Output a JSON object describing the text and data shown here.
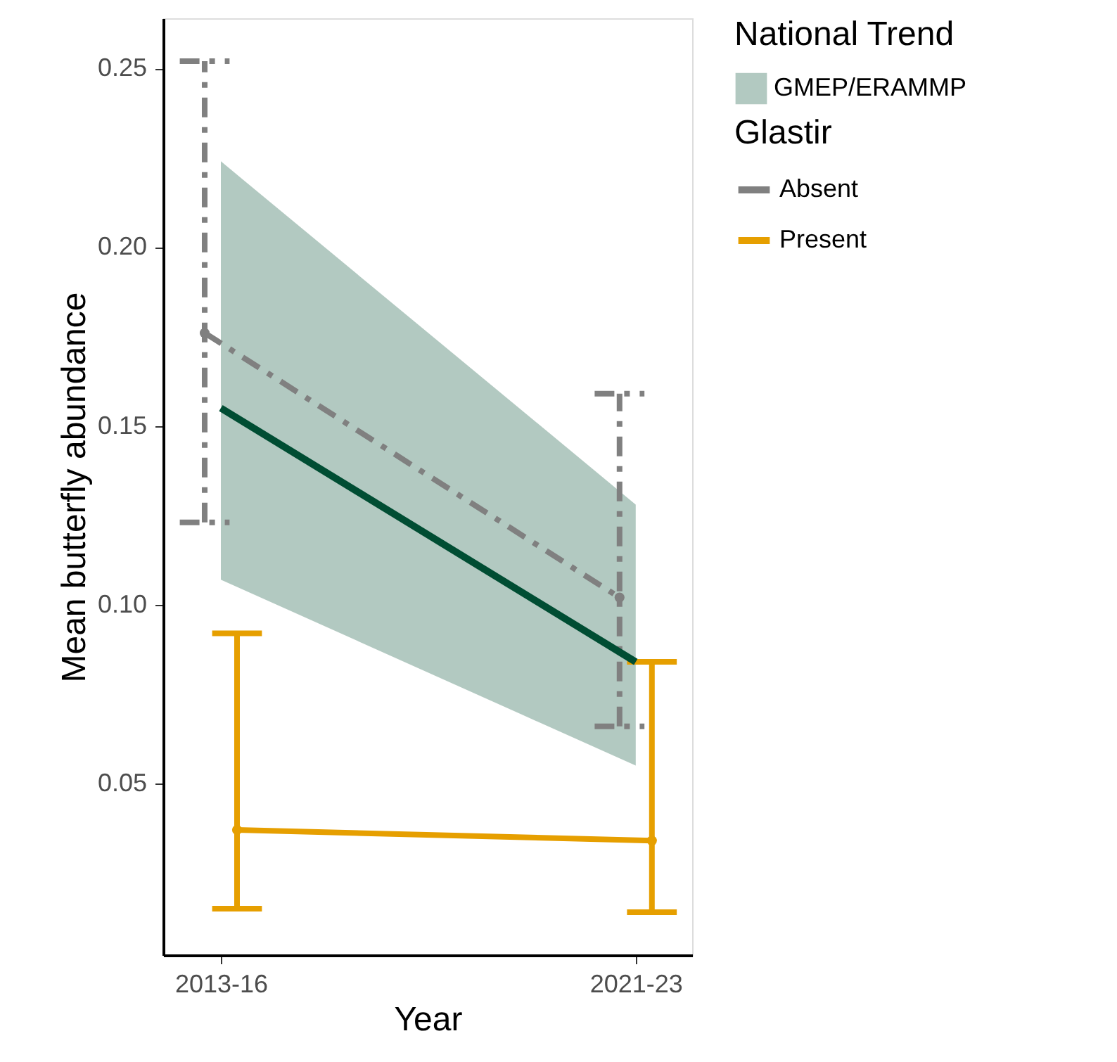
{
  "chart_data": {
    "type": "line",
    "xlabel": "Year",
    "ylabel": "Mean butterfly abundance",
    "legend_title": [
      "Glastir",
      "National Trend"
    ],
    "categories": [
      "2013-16",
      "2021-23"
    ],
    "series": [
      {
        "name": "Absent",
        "color": "#808080",
        "values": [
          0.176,
          0.102
        ],
        "errors": [
          [
            0.123,
            0.252
          ],
          [
            0.066,
            0.159
          ]
        ],
        "line_style": "dashed",
        "marker": "circle"
      },
      {
        "name": "Present",
        "color": "#e69f00",
        "values": [
          0.037,
          0.034
        ],
        "errors": [
          [
            0.015,
            0.092
          ],
          [
            0.014,
            0.084
          ]
        ],
        "line_style": "solid",
        "marker": "circle"
      },
      {
        "name": "GMEP/ERAMMP",
        "color": "#004d33",
        "values": [
          0.155,
          0.084
        ],
        "lower": [
          0.107,
          0.055
        ],
        "upper": [
          0.224,
          0.128
        ],
        "line_style": "solid",
        "marker": "none"
      }
    ],
    "ylim": [
      0.002,
      0.264
    ],
    "yticks": [
      0.05,
      {
        "value": 0.1,
        "label": "0.10"
      },
      0.15,
      {
        "value": 0.2,
        "label": "0.20"
      },
      0.25
    ],
    "grid": false,
    "legend": "right"
  }
}
